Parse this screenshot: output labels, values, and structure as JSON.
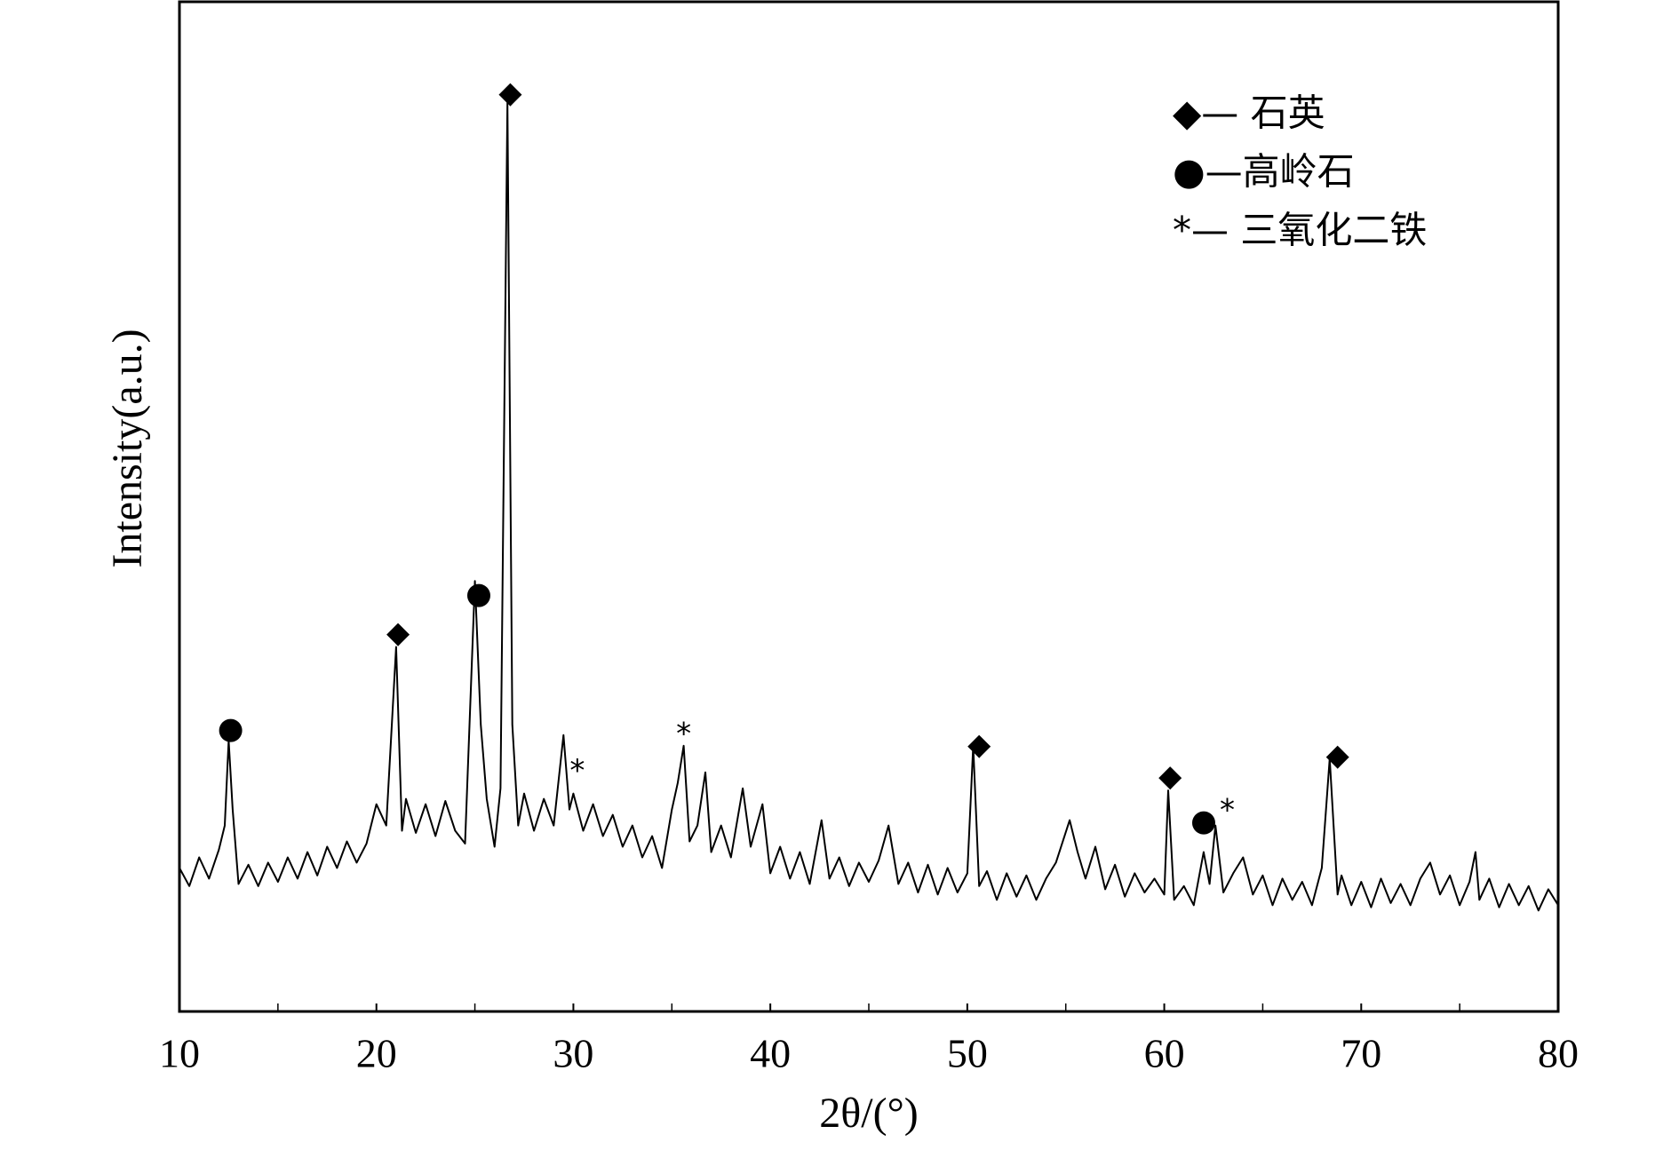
{
  "chart_data": {
    "type": "line",
    "xlabel": "2θ/(°)",
    "ylabel": "Intensity(a.u.)",
    "xlim": [
      10,
      80
    ],
    "ylim": [
      0,
      950
    ],
    "xticks": [
      10,
      20,
      30,
      40,
      50,
      60,
      70,
      80
    ],
    "xminor_ticks": [
      15,
      25,
      35,
      45,
      55,
      65,
      75
    ],
    "series": [
      {
        "color": "#000000",
        "x": [
          10.0,
          10.5,
          11.0,
          11.5,
          12.0,
          12.3,
          12.5,
          12.7,
          13.0,
          13.5,
          14.0,
          14.5,
          15.0,
          15.5,
          16.0,
          16.5,
          17.0,
          17.5,
          18.0,
          18.5,
          19.0,
          19.5,
          20.0,
          20.5,
          21.0,
          21.3,
          21.5,
          22.0,
          22.5,
          23.0,
          23.5,
          24.0,
          24.5,
          25.0,
          25.3,
          25.6,
          26.0,
          26.3,
          26.65,
          26.9,
          27.2,
          27.5,
          28.0,
          28.5,
          29.0,
          29.5,
          29.8,
          30.0,
          30.5,
          31.0,
          31.5,
          32.0,
          32.5,
          33.0,
          33.5,
          34.0,
          34.5,
          35.0,
          35.3,
          35.6,
          35.9,
          36.3,
          36.7,
          37.0,
          37.5,
          38.0,
          38.6,
          39.0,
          39.6,
          40.0,
          40.5,
          41.0,
          41.5,
          42.0,
          42.6,
          43.0,
          43.5,
          44.0,
          44.5,
          45.0,
          45.5,
          46.0,
          46.5,
          47.0,
          47.5,
          48.0,
          48.5,
          49.0,
          49.5,
          50.0,
          50.3,
          50.6,
          51.0,
          51.5,
          52.0,
          52.5,
          53.0,
          53.5,
          54.0,
          54.5,
          55.2,
          55.6,
          56.0,
          56.5,
          57.0,
          57.5,
          58.0,
          58.5,
          59.0,
          59.5,
          60.0,
          60.2,
          60.5,
          61.0,
          61.5,
          62.0,
          62.3,
          62.6,
          63.0,
          63.5,
          64.0,
          64.5,
          65.0,
          65.5,
          66.0,
          66.5,
          67.0,
          67.5,
          68.0,
          68.4,
          68.8,
          69.0,
          69.5,
          70.0,
          70.5,
          71.0,
          71.5,
          72.0,
          72.5,
          73.0,
          73.5,
          74.0,
          74.5,
          75.0,
          75.5,
          75.8,
          76.0,
          76.5,
          77.0,
          77.5,
          78.0,
          78.5,
          79.0,
          79.5,
          80.0
        ],
        "values": [
          135,
          118,
          145,
          125,
          152,
          175,
          255,
          190,
          120,
          138,
          118,
          140,
          122,
          145,
          125,
          150,
          128,
          155,
          135,
          160,
          140,
          158,
          195,
          175,
          343,
          170,
          200,
          168,
          195,
          165,
          198,
          170,
          158,
          405,
          270,
          200,
          155,
          210,
          855,
          270,
          175,
          205,
          170,
          200,
          175,
          260,
          190,
          205,
          170,
          195,
          165,
          185,
          155,
          175,
          145,
          165,
          135,
          190,
          215,
          250,
          160,
          175,
          225,
          150,
          175,
          145,
          210,
          155,
          195,
          130,
          155,
          125,
          150,
          120,
          180,
          125,
          145,
          118,
          140,
          122,
          142,
          175,
          120,
          140,
          112,
          138,
          110,
          135,
          112,
          130,
          250,
          118,
          132,
          105,
          130,
          108,
          128,
          105,
          125,
          140,
          180,
          150,
          125,
          155,
          115,
          138,
          108,
          130,
          112,
          125,
          110,
          208,
          105,
          118,
          100,
          150,
          120,
          175,
          112,
          130,
          145,
          110,
          128,
          100,
          125,
          105,
          122,
          100,
          135,
          238,
          110,
          128,
          100,
          122,
          98,
          125,
          102,
          120,
          100,
          125,
          140,
          110,
          128,
          100,
          122,
          150,
          105,
          125,
          98,
          120,
          100,
          118,
          95,
          115,
          100
        ]
      }
    ],
    "annotations": [
      {
        "text": "●",
        "x": 12.6,
        "y": 265
      },
      {
        "text": "◆",
        "x": 21.1,
        "y": 355
      },
      {
        "text": "●",
        "x": 25.2,
        "y": 392
      },
      {
        "text": "◆",
        "x": 26.8,
        "y": 863
      },
      {
        "text": "*",
        "x": 30.2,
        "y": 225
      },
      {
        "text": "*",
        "x": 35.6,
        "y": 260
      },
      {
        "text": "◆",
        "x": 50.6,
        "y": 250
      },
      {
        "text": "◆",
        "x": 60.3,
        "y": 220
      },
      {
        "text": "●",
        "x": 62.0,
        "y": 178
      },
      {
        "text": "*",
        "x": 63.2,
        "y": 188
      },
      {
        "text": "◆",
        "x": 68.8,
        "y": 240
      }
    ],
    "legend": [
      "◆— 石英",
      "●—高岭石",
      "*— 三氧化二铁"
    ]
  }
}
